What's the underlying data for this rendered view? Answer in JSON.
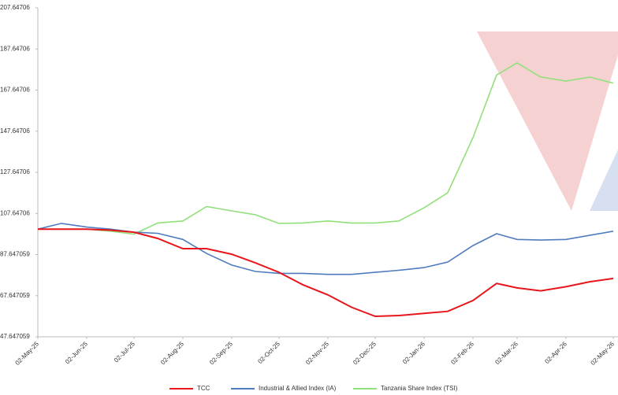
{
  "chart_data": {
    "type": "line",
    "x": [
      "02-May-25",
      "17-May-25",
      "02-Jun-25",
      "17-Jun-25",
      "02-Jul-25",
      "17-Jul-25",
      "02-Aug-25",
      "17-Aug-25",
      "02-Sep-25",
      "17-Sep-25",
      "02-Oct-25",
      "17-Oct-25",
      "02-Nov-25",
      "17-Nov-25",
      "02-Dec-25",
      "17-Dec-25",
      "02-Jan-26",
      "17-Jan-26",
      "02-Feb-26",
      "17-Feb-26",
      "02-Mar-26",
      "17-Mar-26",
      "02-Apr-26",
      "17-Apr-26",
      "02-May-26"
    ],
    "series": [
      {
        "name": "TCC",
        "color": "#e8151b",
        "values": [
          100,
          100,
          100,
          99.5,
          98.5,
          95.5,
          90.5,
          90.5,
          87.8,
          83.6,
          79,
          73,
          68,
          62,
          57.6,
          58,
          59,
          60,
          65.3,
          73.6,
          71.4,
          70,
          72,
          74.4,
          76
        ]
      },
      {
        "name": "Industrial & Allied Index (IA)",
        "color": "#4f7bbf",
        "values": [
          100,
          102.8,
          101,
          100,
          98.5,
          98,
          95,
          88.2,
          82.5,
          79.4,
          78.5,
          78.5,
          78,
          78,
          79,
          80,
          81.3,
          84,
          92,
          97.8,
          95,
          94.7,
          95,
          97,
          99
        ]
      },
      {
        "name": "Tanzania Share Index (TSI)",
        "color": "#92e07c",
        "values": [
          100,
          100,
          100,
          99,
          97.6,
          103,
          104,
          111,
          108.9,
          107,
          102.8,
          103,
          104,
          103,
          103,
          104,
          110.4,
          117.7,
          144.5,
          175,
          180.9,
          174,
          172,
          174,
          171
        ]
      }
    ],
    "xticks": [
      "02-May-25",
      "02-Jun-25",
      "02-Jul-25",
      "02-Aug-25",
      "02-Sep-25",
      "02-Oct-25",
      "02-Nov-25",
      "02-Dec-25",
      "02-Jan-26",
      "02-Feb-26",
      "02-Mar-26",
      "02-Apr-26",
      "02-May-26"
    ],
    "ylim": [
      47.647059,
      207.64706
    ],
    "yticks": [
      47.647059,
      67.647059,
      87.647059,
      107.64706,
      127.64706,
      147.64706,
      167.64706,
      187.64706,
      207.64706
    ],
    "legend": "bottom"
  }
}
